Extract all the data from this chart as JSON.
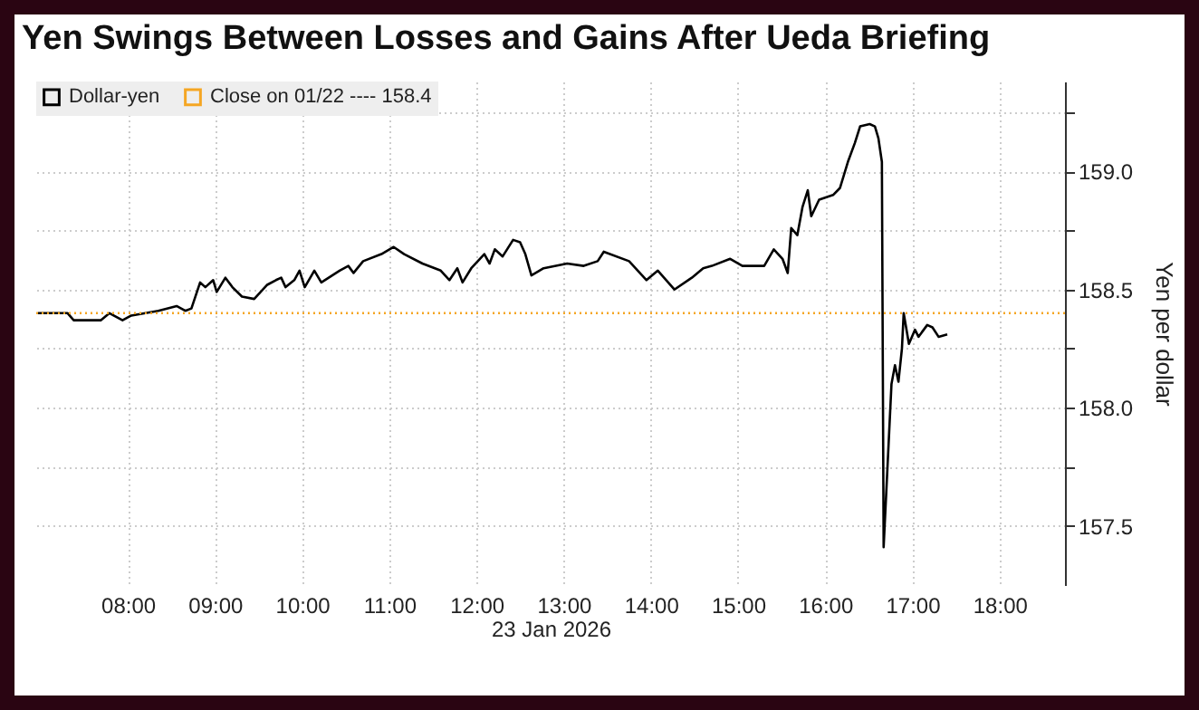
{
  "chart_data": {
    "type": "line",
    "title": "Yen Swings Between Losses and Gains After Ueda Briefing",
    "xlabel": "23 Jan 2026",
    "ylabel": "Yen per dollar",
    "x": [
      6.97,
      7.31,
      7.38,
      7.69,
      7.79,
      7.94,
      8.04,
      8.35,
      8.56,
      8.66,
      8.73,
      8.83,
      8.89,
      8.98,
      9.02,
      9.12,
      9.2,
      9.31,
      9.45,
      9.6,
      9.7,
      9.76,
      9.81,
      9.91,
      9.97,
      10.03,
      10.14,
      10.22,
      10.43,
      10.53,
      10.59,
      10.7,
      10.91,
      11.05,
      11.17,
      11.38,
      11.59,
      11.69,
      11.78,
      11.84,
      11.94,
      12.09,
      12.15,
      12.21,
      12.3,
      12.42,
      12.5,
      12.56,
      12.63,
      12.77,
      13.04,
      13.23,
      13.39,
      13.46,
      13.75,
      13.95,
      14.08,
      14.27,
      14.47,
      14.6,
      14.7,
      14.91,
      15.05,
      15.3,
      15.41,
      15.51,
      15.57,
      15.61,
      15.68,
      15.74,
      15.8,
      15.84,
      15.93,
      16.09,
      16.17,
      16.26,
      16.34,
      16.4,
      16.51,
      16.57,
      16.61,
      16.65,
      16.67,
      16.76,
      16.8,
      16.84,
      16.88,
      16.9,
      16.96,
      17.03,
      17.07,
      17.17,
      17.23,
      17.3,
      17.4
    ],
    "series": [
      {
        "name": "Dollar-yen",
        "color": "#000000",
        "values": [
          158.4,
          158.4,
          158.37,
          158.37,
          158.4,
          158.37,
          158.39,
          158.41,
          158.43,
          158.41,
          158.42,
          158.53,
          158.51,
          158.54,
          158.49,
          158.55,
          158.51,
          158.47,
          158.46,
          158.52,
          158.54,
          158.55,
          158.51,
          158.54,
          158.58,
          158.51,
          158.58,
          158.53,
          158.58,
          158.6,
          158.57,
          158.62,
          158.65,
          158.68,
          158.65,
          158.61,
          158.58,
          158.54,
          158.59,
          158.53,
          158.59,
          158.65,
          158.61,
          158.67,
          158.64,
          158.71,
          158.7,
          158.65,
          158.56,
          158.59,
          158.61,
          158.6,
          158.62,
          158.66,
          158.62,
          158.54,
          158.58,
          158.5,
          158.55,
          158.59,
          158.6,
          158.63,
          158.6,
          158.6,
          158.67,
          158.63,
          158.57,
          158.76,
          158.73,
          158.85,
          158.92,
          158.81,
          158.88,
          158.9,
          158.93,
          159.04,
          159.12,
          159.19,
          159.2,
          159.19,
          159.14,
          159.04,
          157.41,
          158.1,
          158.18,
          158.11,
          158.25,
          158.4,
          158.27,
          158.33,
          158.3,
          158.35,
          158.34,
          158.3,
          158.31
        ]
      }
    ],
    "xlim": [
      6.95,
      18.75
    ],
    "xticks": [
      {
        "value": 8,
        "label": "08:00"
      },
      {
        "value": 9,
        "label": "09:00"
      },
      {
        "value": 10,
        "label": "10:00"
      },
      {
        "value": 11,
        "label": "11:00"
      },
      {
        "value": 12,
        "label": "12:00"
      },
      {
        "value": 13,
        "label": "13:00"
      },
      {
        "value": 14,
        "label": "14:00"
      },
      {
        "value": 15,
        "label": "15:00"
      },
      {
        "value": 16,
        "label": "16:00"
      },
      {
        "value": 17,
        "label": "17:00"
      },
      {
        "value": 18,
        "label": "18:00"
      }
    ],
    "ylim": [
      157.25,
      159.38
    ],
    "yticks": [
      157.5,
      {
        "value": 157.75,
        "label": null
      },
      {
        "value": 158,
        "label": "158.0"
      },
      {
        "value": 158.25,
        "label": null
      },
      158.5,
      {
        "value": 158.75,
        "label": null
      },
      {
        "value": 159,
        "label": "159.0"
      },
      {
        "value": 159.25,
        "label": null
      }
    ],
    "ref_lines": [
      {
        "axis": "y",
        "value": 158.4,
        "label": "Close on 01/22 ---- 158.4",
        "color": "#f5a623",
        "line_style": "dotted"
      }
    ],
    "grid": true,
    "legend": "top left",
    "marker": "none",
    "line_style": "solid"
  }
}
